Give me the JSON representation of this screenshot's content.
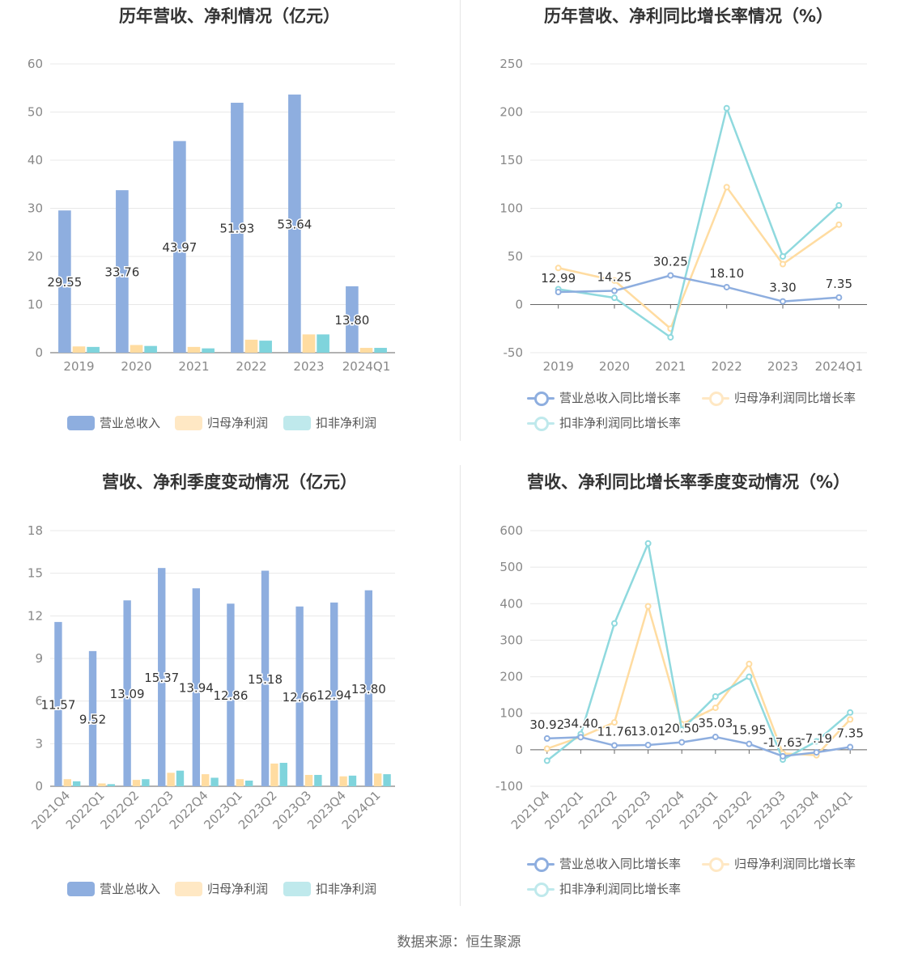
{
  "source": "数据来源：恒生聚源",
  "colors": {
    "revenue": "#8eaedf",
    "parent_profit": "#ffdca1",
    "deducted_profit": "#7fd4dc",
    "rev_line": "#8eaedf",
    "parent_line": "#ffdca1",
    "deducted_line": "#8fd9de",
    "grid": "#e8e8e8",
    "axis_text": "#888888"
  },
  "charts": [
    {
      "title": "历年营收、净利情况（亿元）",
      "legend": [
        "营业总收入",
        "归母净利润",
        "扣非净利润"
      ],
      "chart_data": {
        "type": "bar",
        "categories": [
          "2019",
          "2020",
          "2021",
          "2022",
          "2023",
          "2024Q1"
        ],
        "series": [
          {
            "name": "营业总收入",
            "values": [
              29.55,
              33.76,
              43.97,
              51.93,
              53.64,
              13.8
            ],
            "labels": [
              "29.55",
              "33.76",
              "43.97",
              "51.93",
              "53.64",
              "13.80"
            ]
          },
          {
            "name": "归母净利润",
            "values": [
              1.3,
              1.6,
              1.2,
              2.7,
              3.8,
              1.0
            ]
          },
          {
            "name": "扣非净利润",
            "values": [
              1.2,
              1.4,
              0.9,
              2.5,
              3.8,
              1.0
            ]
          }
        ],
        "yticks": [
          "0",
          "10",
          "20",
          "30",
          "40",
          "50",
          "60"
        ],
        "ylim": [
          0,
          60
        ],
        "xlabel": "",
        "ylabel": "",
        "grid": true,
        "legend_position": "bottom"
      }
    },
    {
      "title": "历年营收、净利同比增长率情况（%）",
      "legend": [
        "营业总收入同比增长率",
        "归母净利润同比增长率",
        "扣非净利润同比增长率"
      ],
      "chart_data": {
        "type": "line",
        "categories": [
          "2019",
          "2020",
          "2021",
          "2022",
          "2023",
          "2024Q1"
        ],
        "series": [
          {
            "name": "营业总收入同比增长率",
            "values": [
              12.99,
              14.25,
              30.25,
              18.1,
              3.3,
              7.35
            ],
            "labels": [
              "12.99",
              "14.25",
              "30.25",
              "18.10",
              "3.30",
              "7.35"
            ]
          },
          {
            "name": "归母净利润同比增长率",
            "values": [
              38,
              25,
              -25,
              122,
              42,
              83
            ]
          },
          {
            "name": "扣非净利润同比增长率",
            "values": [
              16,
              7,
              -34,
              204,
              50,
              103
            ]
          }
        ],
        "yticks": [
          "-50",
          "0",
          "50",
          "100",
          "150",
          "200",
          "250"
        ],
        "ylim": [
          -50,
          250
        ],
        "xlabel": "",
        "ylabel": "",
        "grid": true,
        "legend_position": "bottom"
      }
    },
    {
      "title": "营收、净利季度变动情况（亿元）",
      "legend": [
        "营业总收入",
        "归母净利润",
        "扣非净利润"
      ],
      "chart_data": {
        "type": "bar",
        "categories": [
          "2021Q4",
          "2022Q1",
          "2022Q2",
          "2022Q3",
          "2022Q4",
          "2023Q1",
          "2023Q2",
          "2023Q3",
          "2023Q4",
          "2024Q1"
        ],
        "series": [
          {
            "name": "营业总收入",
            "values": [
              11.57,
              9.52,
              13.09,
              15.37,
              13.94,
              12.86,
              15.18,
              12.66,
              12.94,
              13.8
            ],
            "labels": [
              "11.57",
              "9.52",
              "13.09",
              "15.37",
              "13.94",
              "12.86",
              "15.18",
              "12.66",
              "12.94",
              "13.80"
            ]
          },
          {
            "name": "归母净利润",
            "values": [
              0.5,
              0.2,
              0.45,
              0.95,
              0.85,
              0.5,
              1.6,
              0.8,
              0.7,
              0.9
            ]
          },
          {
            "name": "扣非净利润",
            "values": [
              0.35,
              0.15,
              0.5,
              1.1,
              0.6,
              0.4,
              1.65,
              0.8,
              0.75,
              0.85
            ]
          }
        ],
        "yticks": [
          "0",
          "3",
          "6",
          "9",
          "12",
          "15",
          "18"
        ],
        "ylim": [
          0,
          18
        ],
        "xlabel": "",
        "ylabel": "",
        "grid": true,
        "legend_position": "bottom"
      }
    },
    {
      "title": "营收、净利同比增长率季度变动情况（%）",
      "legend": [
        "营业总收入同比增长率",
        "归母净利润同比增长率",
        "扣非净利润同比增长率"
      ],
      "chart_data": {
        "type": "line",
        "categories": [
          "2021Q4",
          "2022Q1",
          "2022Q2",
          "2022Q3",
          "2022Q4",
          "2023Q1",
          "2023Q2",
          "2023Q3",
          "2023Q4",
          "2024Q1"
        ],
        "series": [
          {
            "name": "营业总收入同比增长率",
            "values": [
              30.92,
              34.4,
              11.76,
              13.01,
              20.5,
              35.03,
              15.95,
              -17.63,
              -7.19,
              7.35
            ],
            "labels": [
              "30.92",
              "34.40",
              "11.76",
              "13.01",
              "20.50",
              "35.03",
              "15.95",
              "-17.63",
              "-7.19",
              "7.35"
            ]
          },
          {
            "name": "归母净利润同比增长率",
            "values": [
              3,
              35,
              75,
              393,
              70,
              115,
              235,
              -10,
              -15,
              83
            ]
          },
          {
            "name": "扣非净利润同比增长率",
            "values": [
              -30,
              43,
              346,
              565,
              55,
              146,
              200,
              -27,
              23,
              102
            ]
          }
        ],
        "yticks": [
          "-100",
          "0",
          "100",
          "200",
          "300",
          "400",
          "500",
          "600"
        ],
        "ylim": [
          -100,
          600
        ],
        "xlabel": "",
        "ylabel": "",
        "grid": true,
        "legend_position": "bottom"
      }
    }
  ]
}
